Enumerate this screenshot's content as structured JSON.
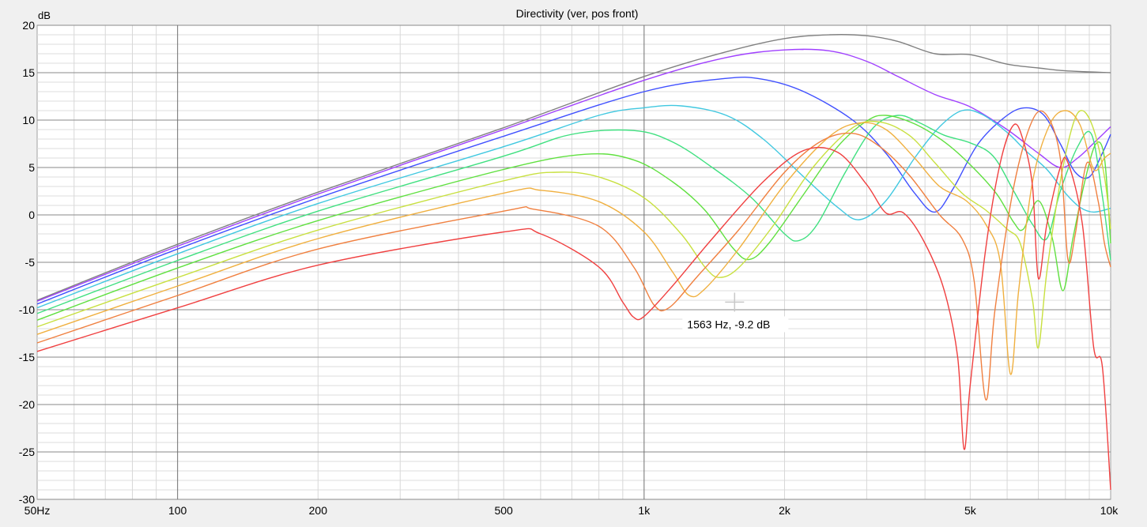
{
  "chart_data": {
    "type": "line",
    "title": "Directivity (ver, pos front)",
    "ylabel": "dB",
    "xscale": "log",
    "xlim": [
      50,
      10000
    ],
    "ylim": [
      -30,
      20
    ],
    "grid": true,
    "y_ticks": [
      20,
      15,
      10,
      5,
      0,
      -5,
      -10,
      -15,
      -20,
      -25,
      -30
    ],
    "x_ticks": [
      {
        "value": 50,
        "label": "50Hz"
      },
      {
        "value": 100,
        "label": "100"
      },
      {
        "value": 200,
        "label": "200"
      },
      {
        "value": 500,
        "label": "500"
      },
      {
        "value": 1000,
        "label": "1k"
      },
      {
        "value": 2000,
        "label": "2k"
      },
      {
        "value": 5000,
        "label": "5k"
      },
      {
        "value": 10000,
        "label": "10k"
      }
    ],
    "cursor": {
      "x": 1563,
      "y": -9.2,
      "label": "1563 Hz, -9.2 dB"
    },
    "series": [
      {
        "color": "#808080",
        "points": [
          [
            50,
            -9
          ],
          [
            100,
            -3.1
          ],
          [
            200,
            2.4
          ],
          [
            500,
            9.2
          ],
          [
            1000,
            14.6
          ],
          [
            1500,
            17.2
          ],
          [
            2000,
            18.6
          ],
          [
            2500,
            19
          ],
          [
            3000,
            18.9
          ],
          [
            3500,
            18.3
          ],
          [
            4200,
            17
          ],
          [
            5000,
            16.9
          ],
          [
            6000,
            15.9
          ],
          [
            7000,
            15.5
          ],
          [
            8000,
            15.2
          ],
          [
            10000,
            15
          ]
        ]
      },
      {
        "color": "#a040ff",
        "points": [
          [
            50,
            -9.1
          ],
          [
            100,
            -3.3
          ],
          [
            200,
            2.2
          ],
          [
            500,
            9
          ],
          [
            1000,
            14.2
          ],
          [
            1500,
            16.6
          ],
          [
            2000,
            17.4
          ],
          [
            2500,
            17.3
          ],
          [
            3000,
            16.2
          ],
          [
            3500,
            14.6
          ],
          [
            4200,
            12.7
          ],
          [
            5000,
            11.4
          ],
          [
            6000,
            9
          ],
          [
            7000,
            6.5
          ],
          [
            7800,
            5
          ],
          [
            8500,
            6
          ],
          [
            9300,
            7.8
          ],
          [
            10000,
            9.3
          ]
        ]
      },
      {
        "color": "#4050ff",
        "points": [
          [
            50,
            -9.4
          ],
          [
            100,
            -3.6
          ],
          [
            200,
            1.8
          ],
          [
            500,
            8.3
          ],
          [
            1000,
            13
          ],
          [
            1500,
            14.4
          ],
          [
            1800,
            14.3
          ],
          [
            2200,
            13
          ],
          [
            2800,
            10
          ],
          [
            3300,
            6.5
          ],
          [
            3800,
            2.3
          ],
          [
            4200,
            0.3
          ],
          [
            4600,
            2.8
          ],
          [
            5200,
            7.5
          ],
          [
            6000,
            10.5
          ],
          [
            6600,
            11.3
          ],
          [
            7200,
            10.5
          ],
          [
            7800,
            7.5
          ],
          [
            8400,
            4.5
          ],
          [
            9000,
            4
          ],
          [
            9600,
            6.5
          ],
          [
            10000,
            8.5
          ]
        ]
      },
      {
        "color": "#40c8e0",
        "points": [
          [
            50,
            -9.8
          ],
          [
            100,
            -4.1
          ],
          [
            200,
            1.2
          ],
          [
            500,
            7.2
          ],
          [
            800,
            10.5
          ],
          [
            1000,
            11.3
          ],
          [
            1200,
            11.5
          ],
          [
            1500,
            10.5
          ],
          [
            1800,
            8
          ],
          [
            2200,
            4
          ],
          [
            2600,
            0.8
          ],
          [
            2900,
            -0.5
          ],
          [
            3300,
            1.5
          ],
          [
            3800,
            6
          ],
          [
            4300,
            9.3
          ],
          [
            4800,
            11
          ],
          [
            5300,
            10.6
          ],
          [
            6000,
            8.7
          ],
          [
            6600,
            6.7
          ],
          [
            7300,
            4.8
          ],
          [
            8000,
            2.3
          ],
          [
            8600,
            0.8
          ],
          [
            9200,
            0.3
          ],
          [
            10000,
            0.7
          ]
        ]
      },
      {
        "color": "#40e080",
        "points": [
          [
            50,
            -10.4
          ],
          [
            100,
            -4.8
          ],
          [
            200,
            0.4
          ],
          [
            500,
            6.2
          ],
          [
            700,
            8.5
          ],
          [
            950,
            8.9
          ],
          [
            1150,
            7.7
          ],
          [
            1400,
            5
          ],
          [
            1700,
            1.8
          ],
          [
            2000,
            -2
          ],
          [
            2150,
            -2.7
          ],
          [
            2350,
            -1
          ],
          [
            2700,
            4.5
          ],
          [
            3100,
            9.2
          ],
          [
            3500,
            10.5
          ],
          [
            3900,
            9.7
          ],
          [
            4400,
            8.4
          ],
          [
            5000,
            7.6
          ],
          [
            5600,
            6.2
          ],
          [
            6200,
            2.5
          ],
          [
            6800,
            -1
          ],
          [
            7300,
            -2.5
          ],
          [
            7800,
            2.5
          ],
          [
            8500,
            7.2
          ],
          [
            9100,
            8.5
          ],
          [
            9600,
            2
          ],
          [
            10000,
            -4.8
          ]
        ]
      },
      {
        "color": "#60e040",
        "points": [
          [
            50,
            -11.1
          ],
          [
            100,
            -5.6
          ],
          [
            200,
            -0.6
          ],
          [
            500,
            4.8
          ],
          [
            750,
            6.4
          ],
          [
            950,
            5.8
          ],
          [
            1150,
            3.5
          ],
          [
            1350,
            0.5
          ],
          [
            1550,
            -3.5
          ],
          [
            1680,
            -4.7
          ],
          [
            1850,
            -3
          ],
          [
            2200,
            2.2
          ],
          [
            2600,
            7.2
          ],
          [
            3000,
            9.9
          ],
          [
            3300,
            10.5
          ],
          [
            3800,
            9.6
          ],
          [
            4400,
            7.7
          ],
          [
            5000,
            5.3
          ],
          [
            5700,
            2.2
          ],
          [
            6200,
            -0.8
          ],
          [
            6500,
            -1.5
          ],
          [
            7000,
            1.5
          ],
          [
            7500,
            -2.5
          ],
          [
            7900,
            -8
          ],
          [
            8300,
            -2.5
          ],
          [
            8800,
            3.5
          ],
          [
            9300,
            7.5
          ],
          [
            9700,
            6
          ],
          [
            10000,
            -3
          ]
        ]
      },
      {
        "color": "#c8e040",
        "points": [
          [
            50,
            -11.8
          ],
          [
            100,
            -6.6
          ],
          [
            200,
            -1.6
          ],
          [
            500,
            3.6
          ],
          [
            650,
            4.5
          ],
          [
            800,
            4
          ],
          [
            1000,
            1.8
          ],
          [
            1200,
            -2
          ],
          [
            1350,
            -5.5
          ],
          [
            1450,
            -6.6
          ],
          [
            1600,
            -5.5
          ],
          [
            1900,
            -1
          ],
          [
            2300,
            5
          ],
          [
            2800,
            9.2
          ],
          [
            3200,
            9.8
          ],
          [
            3700,
            8.4
          ],
          [
            4200,
            5.5
          ],
          [
            4800,
            2.3
          ],
          [
            5400,
            0.5
          ],
          [
            6000,
            -1.5
          ],
          [
            6400,
            -3
          ],
          [
            6800,
            -9
          ],
          [
            7000,
            -14
          ],
          [
            7300,
            -6
          ],
          [
            7800,
            3.5
          ],
          [
            8300,
            9.5
          ],
          [
            8700,
            11
          ],
          [
            9200,
            9
          ],
          [
            9700,
            4
          ],
          [
            10000,
            -1.5
          ]
        ]
      },
      {
        "color": "#f0b040",
        "points": [
          [
            50,
            -12.6
          ],
          [
            100,
            -7.5
          ],
          [
            200,
            -2.5
          ],
          [
            500,
            2.3
          ],
          [
            600,
            2.6
          ],
          [
            800,
            1.4
          ],
          [
            1000,
            -1.8
          ],
          [
            1150,
            -6
          ],
          [
            1250,
            -8.5
          ],
          [
            1350,
            -7.8
          ],
          [
            1600,
            -3.5
          ],
          [
            2000,
            3.2
          ],
          [
            2500,
            8.3
          ],
          [
            2900,
            9.7
          ],
          [
            3300,
            9
          ],
          [
            3800,
            6
          ],
          [
            4300,
            3
          ],
          [
            4900,
            1.5
          ],
          [
            5400,
            -1
          ],
          [
            5800,
            -5
          ],
          [
            6100,
            -16.8
          ],
          [
            6350,
            -8
          ],
          [
            6800,
            3.5
          ],
          [
            7400,
            9.5
          ],
          [
            8000,
            11
          ],
          [
            8600,
            9.5
          ],
          [
            9200,
            4.8
          ],
          [
            9700,
            6
          ],
          [
            10000,
            6.5
          ]
        ]
      },
      {
        "color": "#f08040",
        "points": [
          [
            50,
            -13.5
          ],
          [
            100,
            -8.5
          ],
          [
            200,
            -3.6
          ],
          [
            500,
            0.4
          ],
          [
            580,
            0.6
          ],
          [
            800,
            -1.2
          ],
          [
            950,
            -5.5
          ],
          [
            1050,
            -9.5
          ],
          [
            1130,
            -9.8
          ],
          [
            1300,
            -6.5
          ],
          [
            1600,
            -1.5
          ],
          [
            2000,
            4.5
          ],
          [
            2400,
            7.8
          ],
          [
            2800,
            8.6
          ],
          [
            3200,
            7.2
          ],
          [
            3700,
            4.2
          ],
          [
            4300,
            0
          ],
          [
            4800,
            -2.5
          ],
          [
            5100,
            -7
          ],
          [
            5400,
            -19.5
          ],
          [
            5650,
            -10
          ],
          [
            6200,
            3
          ],
          [
            6800,
            10
          ],
          [
            7300,
            10.5
          ],
          [
            7800,
            6
          ],
          [
            8100,
            -4.7
          ],
          [
            8400,
            -2
          ],
          [
            8900,
            5.5
          ],
          [
            9400,
            1.5
          ],
          [
            9700,
            -3
          ],
          [
            10000,
            -5.5
          ]
        ]
      },
      {
        "color": "#f04040",
        "points": [
          [
            50,
            -14.4
          ],
          [
            100,
            -9.8
          ],
          [
            200,
            -5.3
          ],
          [
            500,
            -1.8
          ],
          [
            600,
            -2
          ],
          [
            800,
            -5.5
          ],
          [
            900,
            -9.2
          ],
          [
            950,
            -10.8
          ],
          [
            1000,
            -10.7
          ],
          [
            1150,
            -7.5
          ],
          [
            1400,
            -2.5
          ],
          [
            1800,
            3.5
          ],
          [
            2200,
            6.8
          ],
          [
            2600,
            6.6
          ],
          [
            3000,
            3.2
          ],
          [
            3300,
            0.2
          ],
          [
            3600,
            0.2
          ],
          [
            4000,
            -3
          ],
          [
            4400,
            -8
          ],
          [
            4700,
            -15
          ],
          [
            4850,
            -24.7
          ],
          [
            5000,
            -18
          ],
          [
            5400,
            -3.5
          ],
          [
            5800,
            5.5
          ],
          [
            6200,
            9.5
          ],
          [
            6500,
            7.8
          ],
          [
            6800,
            3
          ],
          [
            7000,
            -6.7
          ],
          [
            7300,
            -1
          ],
          [
            7800,
            5
          ],
          [
            8100,
            5.5
          ],
          [
            8700,
            -1
          ],
          [
            9200,
            -14
          ],
          [
            9600,
            -16
          ],
          [
            10000,
            -29
          ]
        ]
      }
    ]
  }
}
